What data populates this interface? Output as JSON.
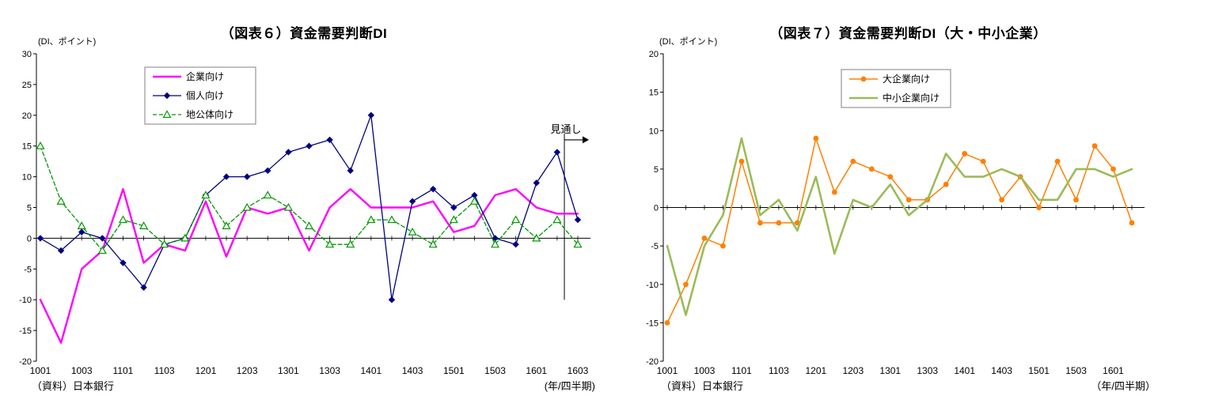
{
  "chart_data": [
    {
      "type": "line",
      "title": "（図表６）資金需要判断DI",
      "unit_label": "(DI、ポイント)",
      "source": "（資料）日本銀行",
      "xaxis_note": "(年/四半期)",
      "annotation": "見通し",
      "forecast_start_x": "1603",
      "ylim": [
        -20,
        30
      ],
      "ytick_step": 5,
      "legend_position": "top-left-inside",
      "grid": false,
      "x": [
        "1001",
        "1002",
        "1003",
        "1004",
        "1101",
        "1102",
        "1103",
        "1104",
        "1201",
        "1202",
        "1203",
        "1204",
        "1301",
        "1302",
        "1303",
        "1304",
        "1401",
        "1402",
        "1403",
        "1404",
        "1501",
        "1502",
        "1503",
        "1504",
        "1601",
        "1602",
        "1603"
      ],
      "xtick_labels": [
        "1001",
        "1003",
        "1101",
        "1103",
        "1201",
        "1203",
        "1301",
        "1303",
        "1401",
        "1403",
        "1501",
        "1503",
        "1601",
        "1603"
      ],
      "series": [
        {
          "name": "企業向け",
          "color": "#FF00FF",
          "width": 2.4,
          "marker": "none",
          "dash": "",
          "values": [
            -10,
            -17,
            -5,
            -2,
            8,
            -4,
            -1,
            -2,
            6,
            -3,
            5,
            4,
            5,
            -2,
            5,
            8,
            5,
            5,
            5,
            6,
            1,
            2,
            7,
            8,
            5,
            4,
            4
          ]
        },
        {
          "name": "個人向け",
          "color": "#000080",
          "width": 1.3,
          "marker": "diamond",
          "dash": "",
          "values": [
            0,
            -2,
            1,
            0,
            -4,
            -8,
            -1,
            0,
            7,
            10,
            10,
            11,
            14,
            15,
            16,
            11,
            20,
            -10,
            6,
            8,
            5,
            7,
            0,
            -1,
            9,
            14,
            3
          ]
        },
        {
          "name": "地公体向け",
          "color": "#009900",
          "width": 1.3,
          "marker": "triangle",
          "dash": "5,3",
          "values": [
            15,
            6,
            2,
            -2,
            3,
            2,
            -1,
            0,
            7,
            2,
            5,
            7,
            5,
            2,
            -1,
            -1,
            3,
            3,
            1,
            -1,
            3,
            6,
            -1,
            3,
            0,
            3,
            -1
          ]
        }
      ]
    },
    {
      "type": "line",
      "title": "（図表７）資金需要判断DI（大・中小企業）",
      "unit_label": "(DI、ポイント)",
      "source": "（資料）日本銀行",
      "xaxis_note": "（年/四半期）",
      "ylim": [
        -20,
        20
      ],
      "ytick_step": 5,
      "legend_position": "top-center-inside",
      "grid": false,
      "x": [
        "1001",
        "1002",
        "1003",
        "1004",
        "1101",
        "1102",
        "1103",
        "1104",
        "1201",
        "1202",
        "1203",
        "1204",
        "1301",
        "1302",
        "1303",
        "1304",
        "1401",
        "1402",
        "1403",
        "1404",
        "1501",
        "1502",
        "1503",
        "1504",
        "1601",
        "1602"
      ],
      "xtick_labels": [
        "1001",
        "1003",
        "1101",
        "1103",
        "1201",
        "1203",
        "1301",
        "1303",
        "1401",
        "1403",
        "1501",
        "1503",
        "1601"
      ],
      "series": [
        {
          "name": "大企業向け",
          "color": "#FF8000",
          "width": 1.5,
          "marker": "circle",
          "dash": "",
          "values": [
            -15,
            -10,
            -4,
            -5,
            6,
            -2,
            -2,
            -2,
            9,
            2,
            6,
            5,
            4,
            1,
            1,
            3,
            7,
            6,
            1,
            4,
            0,
            6,
            1,
            8,
            5,
            -2
          ]
        },
        {
          "name": "中小企業向け",
          "color": "#9BBB59",
          "width": 2.6,
          "marker": "none",
          "dash": "",
          "values": [
            -5,
            -14,
            -5,
            -1,
            9,
            -1,
            1,
            -3,
            4,
            -6,
            1,
            0,
            3,
            -1,
            1,
            7,
            4,
            4,
            5,
            4,
            1,
            1,
            5,
            5,
            4,
            5
          ]
        }
      ]
    }
  ]
}
